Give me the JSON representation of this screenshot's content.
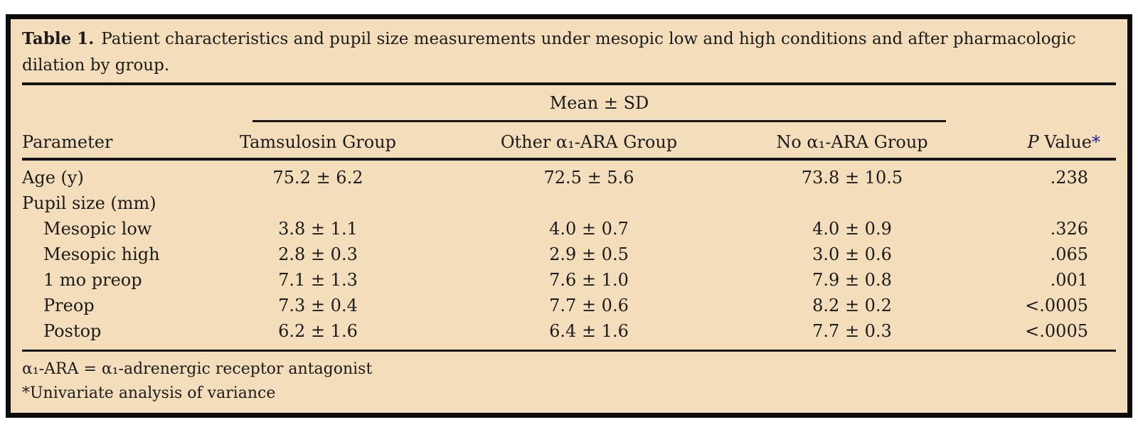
{
  "caption": {
    "label": "Table 1.",
    "text": "Patient characteristics and pupil size measurements under mesopic low and high conditions and after pharmacologic dilation by group."
  },
  "table": {
    "span_header": "Mean ± SD",
    "columns": {
      "parameter": "Parameter",
      "group1": "Tamsulosin Group",
      "group2": "Other α₁-ARA Group",
      "group3": "No α₁-ARA Group",
      "p_italic": "P",
      "p_rest": " Value",
      "p_star": "*"
    },
    "rows": [
      {
        "label": "Age (y)",
        "values": [
          "75.2 ± 6.2",
          "72.5 ± 5.6",
          "73.8 ± 10.5"
        ],
        "p": ".238"
      },
      {
        "label": "Pupil size (mm)",
        "values": [
          "",
          "",
          ""
        ],
        "p": ""
      },
      {
        "label": "Mesopic low",
        "values": [
          "3.8 ± 1.1",
          "4.0 ± 0.7",
          "4.0 ± 0.9"
        ],
        "p": ".326"
      },
      {
        "label": "Mesopic high",
        "values": [
          "2.8 ± 0.3",
          "2.9 ± 0.5",
          "3.0 ± 0.6"
        ],
        "p": ".065"
      },
      {
        "label": "1 mo preop",
        "values": [
          "7.1 ± 1.3",
          "7.6 ± 1.0",
          "7.9 ± 0.8"
        ],
        "p": ".001"
      },
      {
        "label": "Preop",
        "values": [
          "7.3 ± 0.4",
          "7.7 ± 0.6",
          "8.2 ± 0.2"
        ],
        "p": "<.0005"
      },
      {
        "label": "Postop",
        "values": [
          "6.2 ± 1.6",
          "6.4 ± 1.6",
          "7.7 ± 0.3"
        ],
        "p": "<.0005"
      }
    ]
  },
  "footnotes": {
    "abbreviation": "α₁-ARA = α₁-adrenergic receptor antagonist",
    "asterisk": "*Univariate analysis of variance"
  },
  "colors": {
    "background": "#f3ddbb",
    "frame": "#0c0c0c",
    "text": "#1b1b1b",
    "rule": "#151515",
    "star_blue": "#2121a3",
    "page": "#ffffff"
  }
}
